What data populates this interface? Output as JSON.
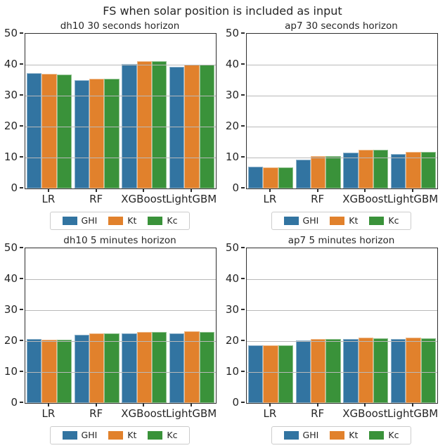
{
  "figure": {
    "suptitle": "FS when solar position is included as input"
  },
  "legend": {
    "entries": [
      {
        "label": "GHI",
        "color": "#3274a1"
      },
      {
        "label": "Kt",
        "color": "#e1812c"
      },
      {
        "label": "Kc",
        "color": "#3a923a"
      }
    ],
    "position": "below each subplot, centered"
  },
  "axes_defaults": {
    "ylim": [
      0,
      50
    ],
    "yticks": [
      0,
      10,
      20,
      30,
      40,
      50
    ],
    "grid_values": [
      10,
      20,
      30,
      40
    ],
    "grid": "horizontal, drawn over bars",
    "categories": [
      "LR",
      "RF",
      "XGBoost",
      "LightGBM"
    ]
  },
  "chart_data": [
    {
      "type": "bar",
      "position": "top-left",
      "title": "dh10 30 seconds horizon",
      "categories": [
        "LR",
        "RF",
        "XGBoost",
        "LightGBM"
      ],
      "ylim": [
        0,
        50
      ],
      "series": [
        {
          "name": "GHI",
          "color": "#3274a1",
          "values": [
            37.2,
            34.9,
            40.3,
            39.3
          ]
        },
        {
          "name": "Kt",
          "color": "#e1812c",
          "values": [
            37.1,
            35.5,
            41.2,
            40.0
          ]
        },
        {
          "name": "Kc",
          "color": "#3a923a",
          "values": [
            36.9,
            35.5,
            41.2,
            39.9
          ]
        }
      ]
    },
    {
      "type": "bar",
      "position": "top-right",
      "title": "ap7 30 seconds horizon",
      "categories": [
        "LR",
        "RF",
        "XGBoost",
        "LightGBM"
      ],
      "ylim": [
        0,
        50
      ],
      "series": [
        {
          "name": "GHI",
          "color": "#3274a1",
          "values": [
            7.0,
            9.4,
            11.7,
            11.1
          ]
        },
        {
          "name": "Kt",
          "color": "#e1812c",
          "values": [
            6.9,
            10.4,
            12.4,
            11.9
          ]
        },
        {
          "name": "Kc",
          "color": "#3a923a",
          "values": [
            6.8,
            10.5,
            12.4,
            11.9
          ]
        }
      ]
    },
    {
      "type": "bar",
      "position": "bottom-left",
      "title": "dh10 5 minutes horizon",
      "categories": [
        "LR",
        "RF",
        "XGBoost",
        "LightGBM"
      ],
      "ylim": [
        0,
        50
      ],
      "series": [
        {
          "name": "GHI",
          "color": "#3274a1",
          "values": [
            20.6,
            22.1,
            22.5,
            22.5
          ]
        },
        {
          "name": "Kt",
          "color": "#e1812c",
          "values": [
            20.5,
            22.5,
            22.9,
            23.1
          ]
        },
        {
          "name": "Kc",
          "color": "#3a923a",
          "values": [
            20.4,
            22.4,
            22.9,
            22.9
          ]
        }
      ]
    },
    {
      "type": "bar",
      "position": "bottom-right",
      "title": "ap7 5 minutes horizon",
      "categories": [
        "LR",
        "RF",
        "XGBoost",
        "LightGBM"
      ],
      "ylim": [
        0,
        50
      ],
      "series": [
        {
          "name": "GHI",
          "color": "#3274a1",
          "values": [
            18.7,
            20.2,
            20.6,
            20.6
          ]
        },
        {
          "name": "Kt",
          "color": "#e1812c",
          "values": [
            18.6,
            20.7,
            21.1,
            21.1
          ]
        },
        {
          "name": "Kc",
          "color": "#3a923a",
          "values": [
            18.6,
            20.6,
            20.9,
            20.9
          ]
        }
      ]
    }
  ]
}
